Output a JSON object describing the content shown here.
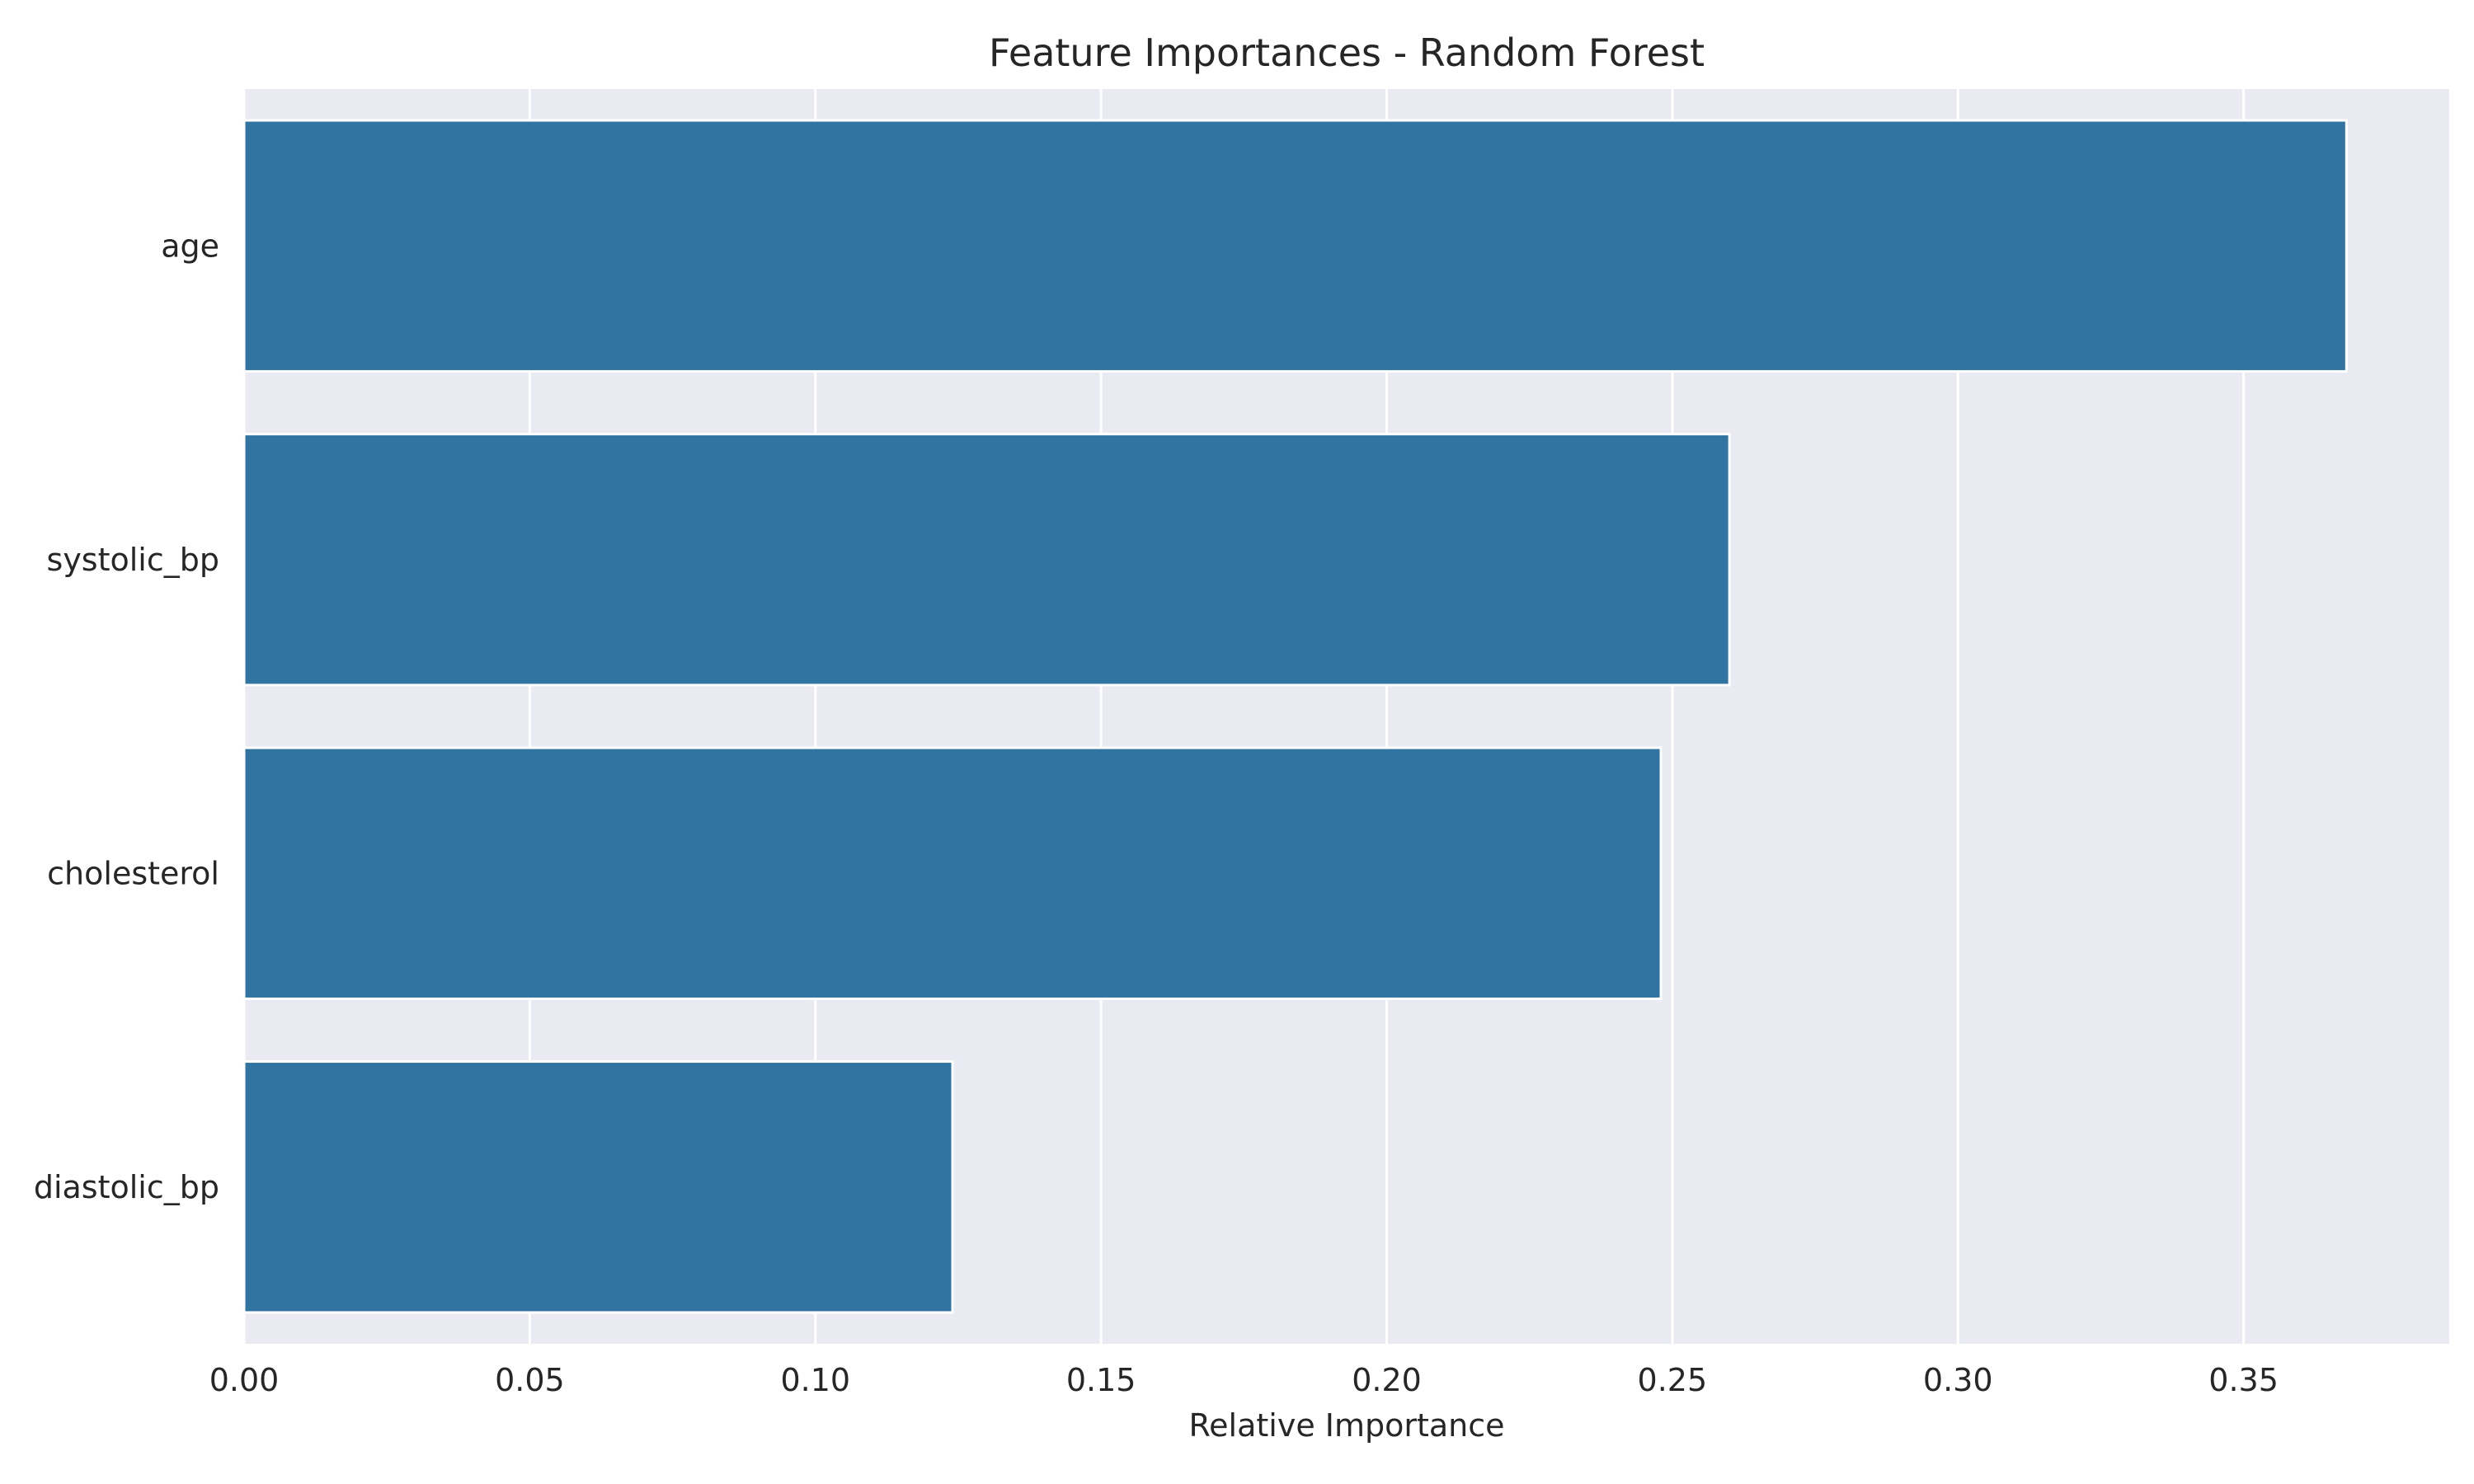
{
  "chart_data": {
    "type": "bar",
    "orientation": "horizontal",
    "title": "Feature Importances - Random Forest",
    "xlabel": "Relative Importance",
    "ylabel": "",
    "categories": [
      "age",
      "systolic_bp",
      "cholesterol",
      "diastolic_bp"
    ],
    "values": [
      0.368,
      0.26,
      0.248,
      0.124
    ],
    "xlim": [
      0,
      0.386
    ],
    "xticks": [
      0.0,
      0.05,
      0.1,
      0.15,
      0.2,
      0.25,
      0.3,
      0.35
    ],
    "xtick_labels": [
      "0.00",
      "0.05",
      "0.10",
      "0.15",
      "0.20",
      "0.25",
      "0.30",
      "0.35"
    ],
    "grid": true,
    "colors": {
      "bar": "#3274a1",
      "plot_background": "#eaeaf2",
      "grid": "#ffffff",
      "text": "#262626"
    }
  }
}
